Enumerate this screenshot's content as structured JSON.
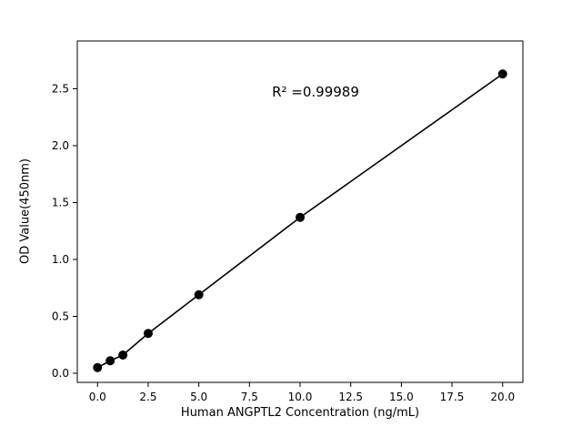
{
  "chart_data": {
    "type": "scatter",
    "title": "",
    "xlabel": "Human ANGPTL2 Concentration (ng/mL)",
    "ylabel": "OD Value(450nm)",
    "annotation": "R² =0.99989",
    "x": [
      0,
      0.625,
      1.25,
      2.5,
      5,
      10,
      20
    ],
    "y": [
      0.05,
      0.11,
      0.16,
      0.35,
      0.69,
      1.37,
      2.63
    ],
    "xlim": [
      -1,
      21
    ],
    "ylim": [
      -0.08,
      2.92
    ],
    "x_ticks": [
      0.0,
      2.5,
      5.0,
      7.5,
      10.0,
      12.5,
      15.0,
      17.5,
      20.0
    ],
    "x_tick_labels": [
      "0.0",
      "2.5",
      "5.0",
      "7.5",
      "10.0",
      "12.5",
      "15.0",
      "17.5",
      "20.0"
    ],
    "y_ticks": [
      0.0,
      0.5,
      1.0,
      1.5,
      2.0,
      2.5
    ],
    "y_tick_labels": [
      "0.0",
      "0.5",
      "1.0",
      "1.5",
      "2.0",
      "2.5"
    ],
    "grid": false,
    "legend": null,
    "line": true,
    "line_color": "#000000",
    "marker_color": "#000000",
    "background": "#ffffff"
  }
}
